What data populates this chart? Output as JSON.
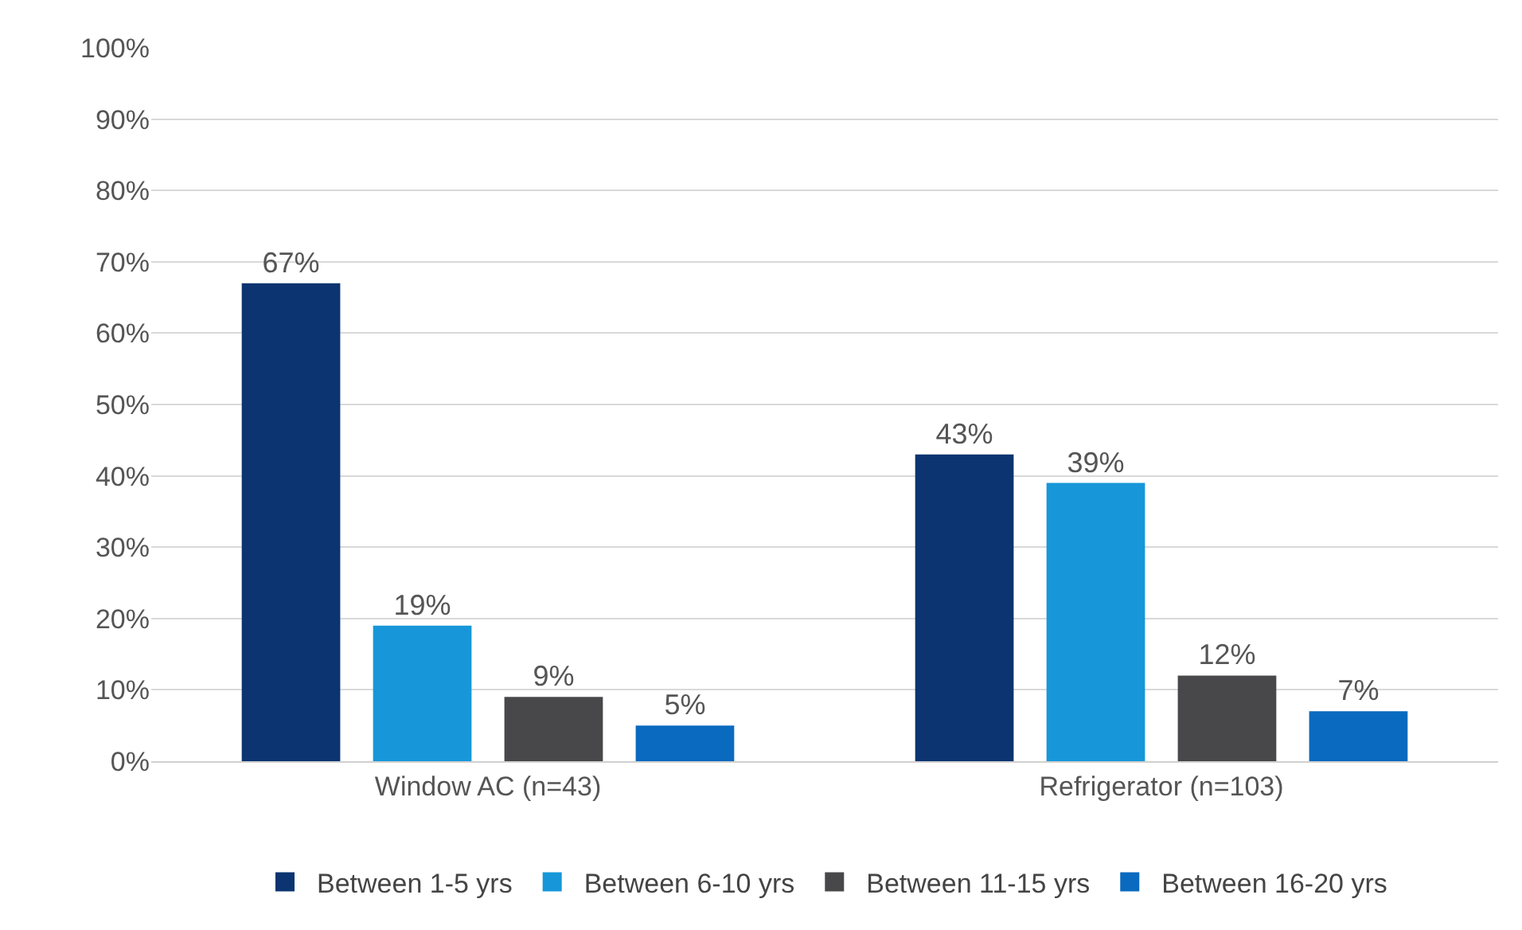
{
  "chart_data": {
    "type": "bar",
    "categories": [
      "Window AC (n=43)",
      "Refrigerator (n=103)"
    ],
    "series": [
      {
        "name": "Between 1-5 yrs",
        "color": "#0b3470",
        "values": [
          67,
          43
        ],
        "value_labels": [
          "67%",
          "43%"
        ]
      },
      {
        "name": "Between 6-10 yrs",
        "color": "#1797d9",
        "values": [
          19,
          39
        ],
        "value_labels": [
          "19%",
          "39%"
        ]
      },
      {
        "name": "Between 11-15 yrs",
        "color": "#48484a",
        "values": [
          9,
          12
        ],
        "value_labels": [
          "9%",
          "12%"
        ]
      },
      {
        "name": "Between 16-20 yrs",
        "color": "#0a6abf",
        "values": [
          5,
          7
        ],
        "value_labels": [
          "5%",
          "7%"
        ]
      }
    ],
    "ylim": [
      0,
      100
    ],
    "yticks": [
      {
        "value": 0,
        "label": "0%"
      },
      {
        "value": 10,
        "label": "10%"
      },
      {
        "value": 20,
        "label": "20%"
      },
      {
        "value": 30,
        "label": "30%"
      },
      {
        "value": 40,
        "label": "40%"
      },
      {
        "value": 50,
        "label": "50%"
      },
      {
        "value": 60,
        "label": "60%"
      },
      {
        "value": 70,
        "label": "70%"
      },
      {
        "value": 80,
        "label": "80%"
      },
      {
        "value": 90,
        "label": "90%"
      },
      {
        "value": 100,
        "label": "100%"
      }
    ],
    "grid": "y",
    "legend": "bottom"
  }
}
